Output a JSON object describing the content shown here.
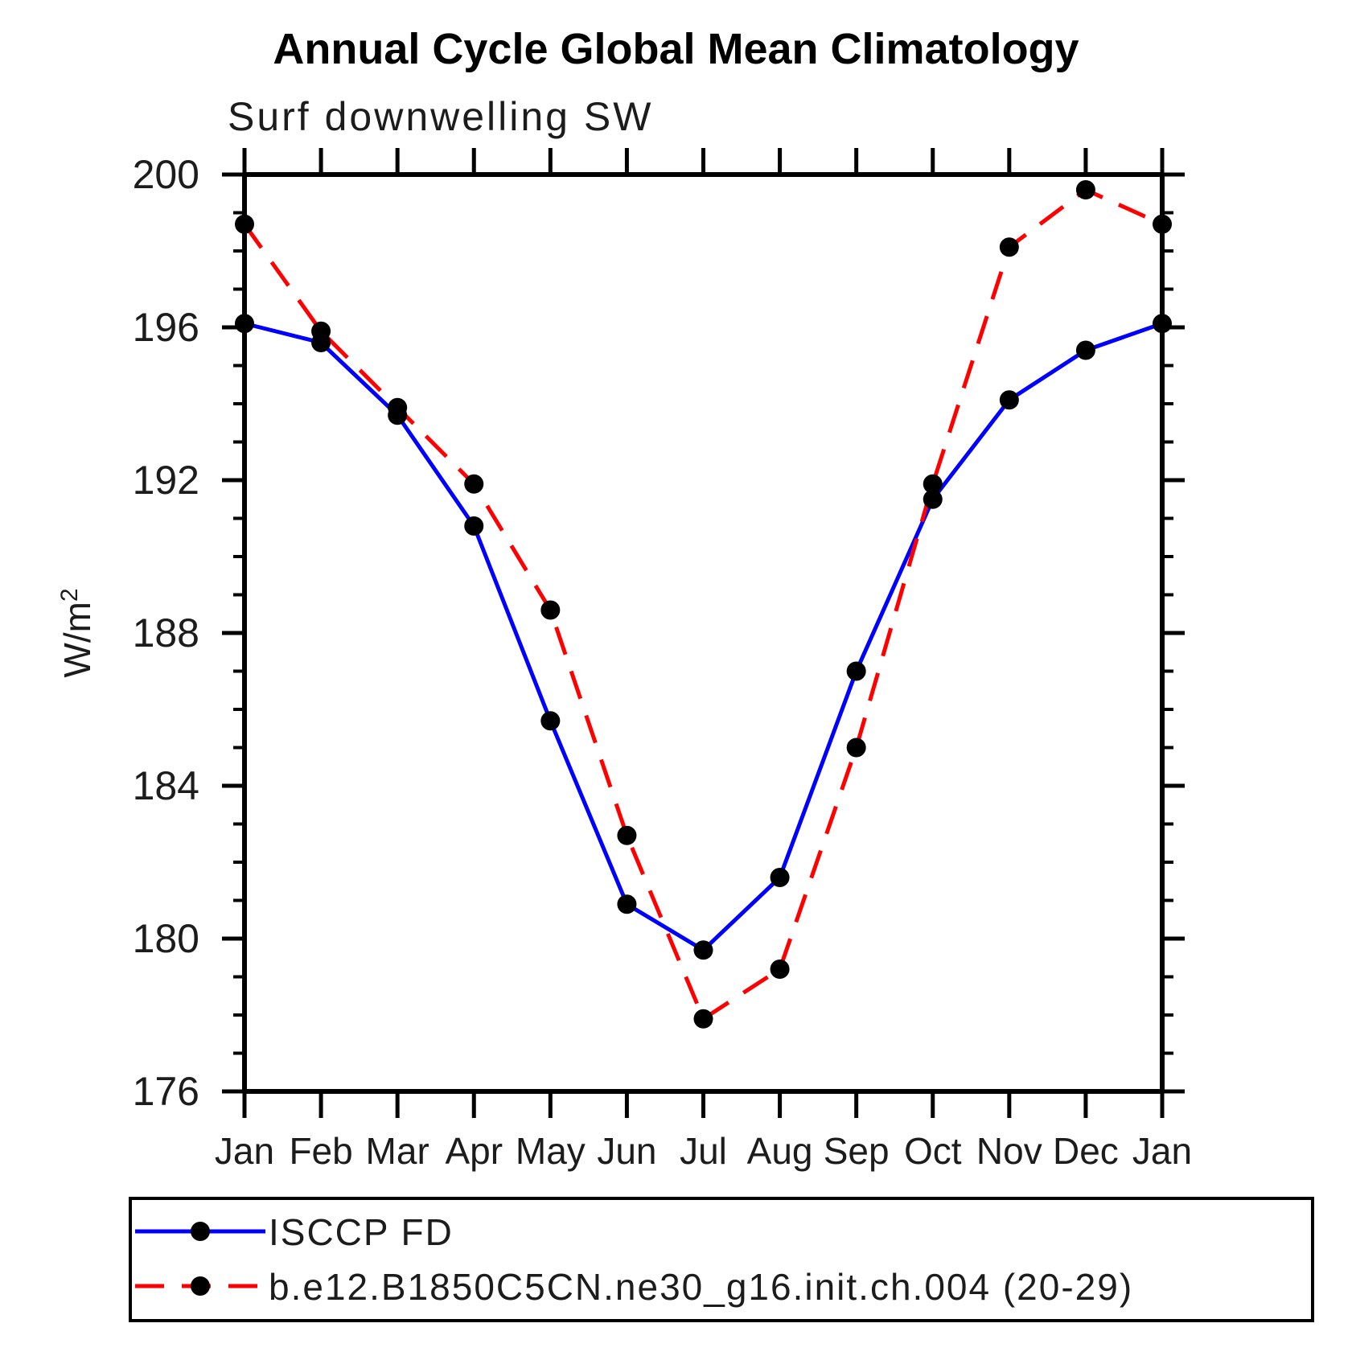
{
  "chart_data": {
    "type": "line",
    "title": "Annual Cycle Global Mean Climatology",
    "subtitle": "Surf downwelling SW",
    "ylabel_base": "W/m",
    "ylabel_sup": "2",
    "x_categories": [
      "Jan",
      "Feb",
      "Mar",
      "Apr",
      "May",
      "Jun",
      "Jul",
      "Aug",
      "Sep",
      "Oct",
      "Nov",
      "Dec",
      "Jan"
    ],
    "ylim": [
      176,
      200
    ],
    "ytick_labels": [
      176,
      180,
      184,
      188,
      192,
      196,
      200
    ],
    "ytick_major_step": 4,
    "ytick_minor_step": 1,
    "grid": false,
    "legend_position": "bottom",
    "axis_color": "#000000",
    "marker_color": "#000000",
    "series": [
      {
        "name": "ISCCP FD",
        "color": "#0000ff",
        "style": "solid",
        "marker": "circle",
        "values": [
          196.1,
          195.6,
          193.7,
          190.8,
          185.7,
          180.9,
          179.7,
          181.6,
          187.0,
          191.5,
          194.1,
          195.4,
          196.1
        ]
      },
      {
        "name": "b.e12.B1850C5CN.ne30_g16.init.ch.004 (20-29)",
        "color": "#ff0000",
        "style": "dashed",
        "marker": "circle",
        "values": [
          198.7,
          195.9,
          193.9,
          191.9,
          188.6,
          182.7,
          177.9,
          179.2,
          185.0,
          191.9,
          198.1,
          199.6,
          198.7
        ]
      }
    ]
  }
}
